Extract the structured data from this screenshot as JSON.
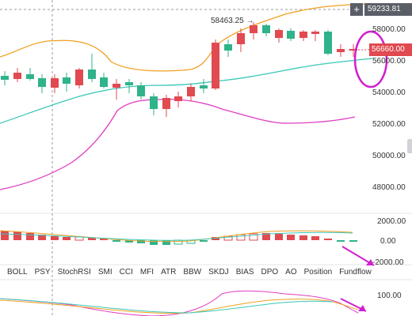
{
  "price_axis": {
    "top_price": "59233.81",
    "labels": [
      "58000.00",
      "56000.00",
      "54000.00",
      "52000.00",
      "50000.00",
      "48000.00"
    ],
    "current_price": "56660.00",
    "annotation": "58463.25 →",
    "plus_button": "+"
  },
  "macd_axis": {
    "labels": [
      "2000.00",
      "0.00",
      "-2000.00"
    ]
  },
  "bottom_axis": {
    "labels": [
      "100.00"
    ]
  },
  "indicator_tabs": [
    "BOLL",
    "PSY",
    "StochRSI",
    "SMI",
    "CCI",
    "MFI",
    "ATR",
    "BBW",
    "SKDJ",
    "BIAS",
    "DPO",
    "AO",
    "Position",
    "Fundflow"
  ],
  "colors": {
    "up": "#2fb38a",
    "down": "#e04a50",
    "boll_upper": "#f0a020",
    "boll_mid": "#3cc8b8",
    "boll_lower": "#e03cc0",
    "annotation": "#d020d0"
  }
}
